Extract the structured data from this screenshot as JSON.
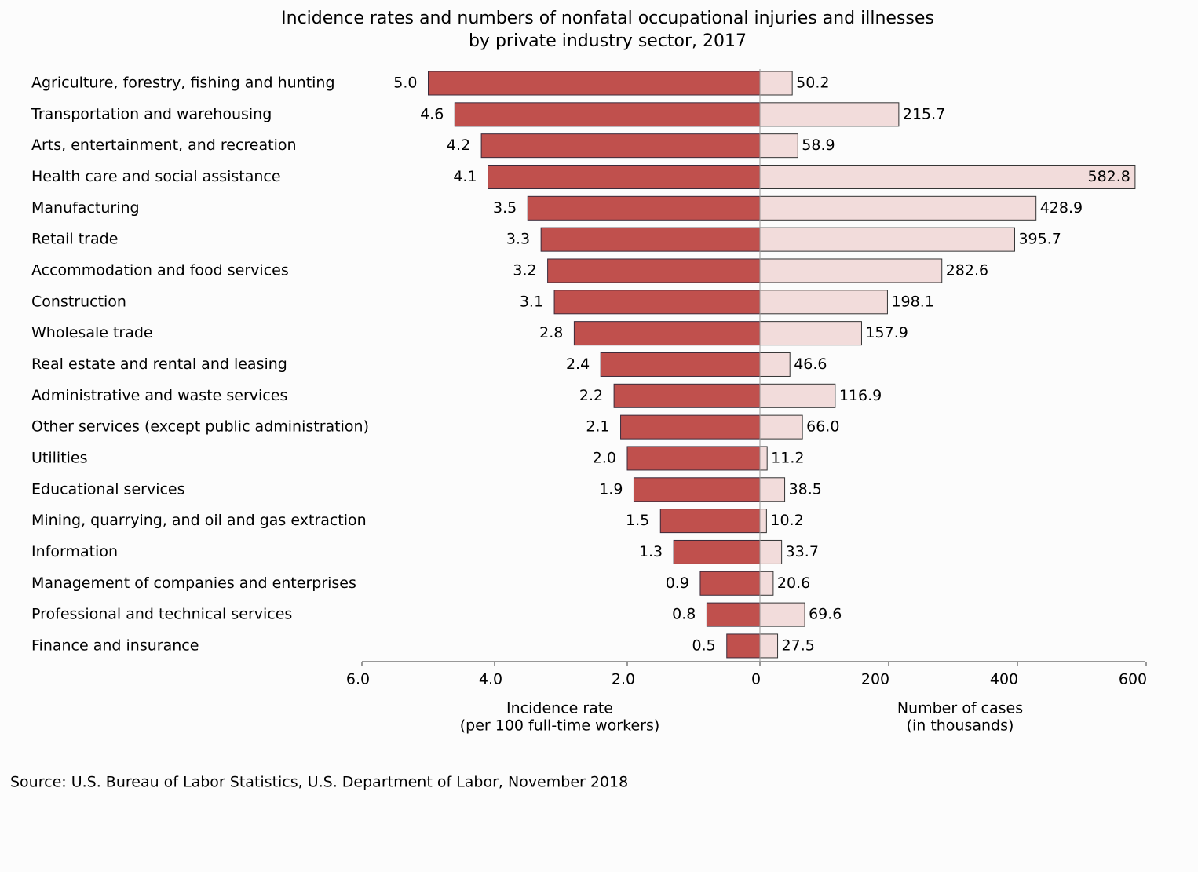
{
  "chart_data": {
    "type": "butterfly",
    "title": [
      "Incidence rates and numbers of nonfatal occupational injuries and illnesses",
      "by private industry sector, 2017"
    ],
    "categories": [
      "Agriculture, forestry, fishing and hunting",
      "Transportation and warehousing",
      "Arts, entertainment, and recreation",
      "Health care and social assistance",
      "Manufacturing",
      "Retail trade",
      "Accommodation and food services",
      "Construction",
      "Wholesale trade",
      "Real estate and rental and leasing",
      "Administrative and waste services",
      "Other services (except public administration)",
      "Utilities",
      "Educational services",
      "Mining, quarrying, and oil and gas extraction",
      "Information",
      "Management of companies and enterprises",
      "Professional and technical services",
      "Finance and insurance"
    ],
    "left": {
      "axis_label": [
        "Incidence rate",
        "(per 100 full-time workers)"
      ],
      "color": "#c0504d",
      "values": [
        5.0,
        4.6,
        4.2,
        4.1,
        3.5,
        3.3,
        3.2,
        3.1,
        2.8,
        2.4,
        2.2,
        2.1,
        2.0,
        1.9,
        1.5,
        1.3,
        0.9,
        0.8,
        0.5
      ],
      "value_labels": [
        "5.0",
        "4.6",
        "4.2",
        "4.1",
        "3.5",
        "3.3",
        "3.2",
        "3.1",
        "2.8",
        "2.4",
        "2.2",
        "2.1",
        "2.0",
        "1.9",
        "1.5",
        "1.3",
        "0.9",
        "0.8",
        "0.5"
      ],
      "xlim": [
        6,
        0
      ],
      "xticks": [
        {
          "value": 6,
          "label": "6.0"
        },
        {
          "value": 4,
          "label": "4.0"
        },
        {
          "value": 2,
          "label": "2.0"
        },
        0
      ]
    },
    "right": {
      "axis_label": [
        "Number of cases",
        "(in thousands)"
      ],
      "color": "#f2dcdb",
      "values": [
        50.2,
        215.7,
        58.9,
        582.8,
        428.9,
        395.7,
        282.6,
        198.1,
        157.9,
        46.6,
        116.9,
        66.0,
        11.2,
        38.5,
        10.2,
        33.7,
        20.6,
        69.6,
        27.5
      ],
      "value_labels": [
        "50.2",
        "215.7",
        "58.9",
        "582.8",
        "428.9",
        "395.7",
        "282.6",
        "198.1",
        "157.9",
        "46.6",
        "116.9",
        "66.0",
        "11.2",
        "38.5",
        "10.2",
        "33.7",
        "20.6",
        "69.6",
        "27.5"
      ],
      "xlim": [
        0,
        600
      ],
      "xticks": [
        200,
        400,
        600
      ]
    },
    "source": "Source: U.S. Bureau of Labor Statistics, U.S. Department of Labor, November 2018"
  }
}
